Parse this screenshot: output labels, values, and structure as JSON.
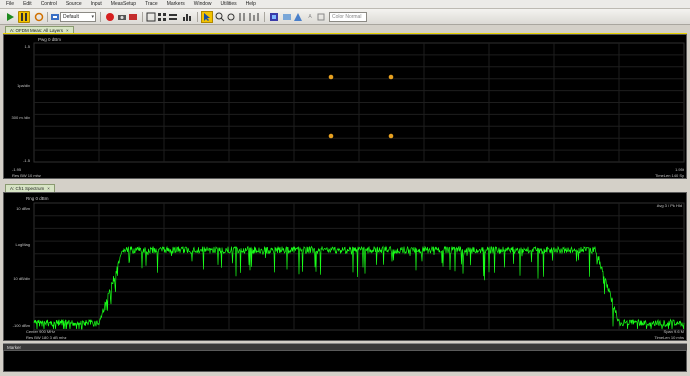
{
  "menu": [
    "File",
    "Edit",
    "Control",
    "Source",
    "Input",
    "MeasSetup",
    "Trace",
    "Markers",
    "Window",
    "Utilities",
    "Help"
  ],
  "toolbar": {
    "preset_select": "Default",
    "search_placeholder": "Color Normal"
  },
  "tabs": {
    "top": "A: OFDM Meas: All Layers",
    "bottom": "A: Ch1 Spectrum",
    "footer": "Marker"
  },
  "constellation": {
    "title": "Pwg 0 dBm",
    "y_labels": [
      "1.5",
      "1pa/div",
      "300 m /div",
      "-1.5"
    ],
    "bottom_left": [
      "-1.95",
      "Res BW 10 mhz"
    ],
    "bottom_right": [
      "1.95t",
      "TimeLen 140 Sy"
    ],
    "points_color": "#e6a020"
  },
  "spectrum": {
    "title": "Rng 0 dBm",
    "top_right": "Avg 3 / Pk Hld",
    "y_labels": [
      "10 dBm",
      "LogMag",
      "10 dB/div",
      "-100 dBm"
    ],
    "bottom_left": [
      "Center 900 MHz",
      "Res BW 180 3 dB mhz"
    ],
    "bottom_right": [
      "Span 9.6 M",
      "TimeLen 10 mhs"
    ],
    "trace_color": "#19ff19"
  },
  "colors": {
    "panel_bg": "#000000",
    "grid": "#262626",
    "accent": "#e9d300"
  }
}
